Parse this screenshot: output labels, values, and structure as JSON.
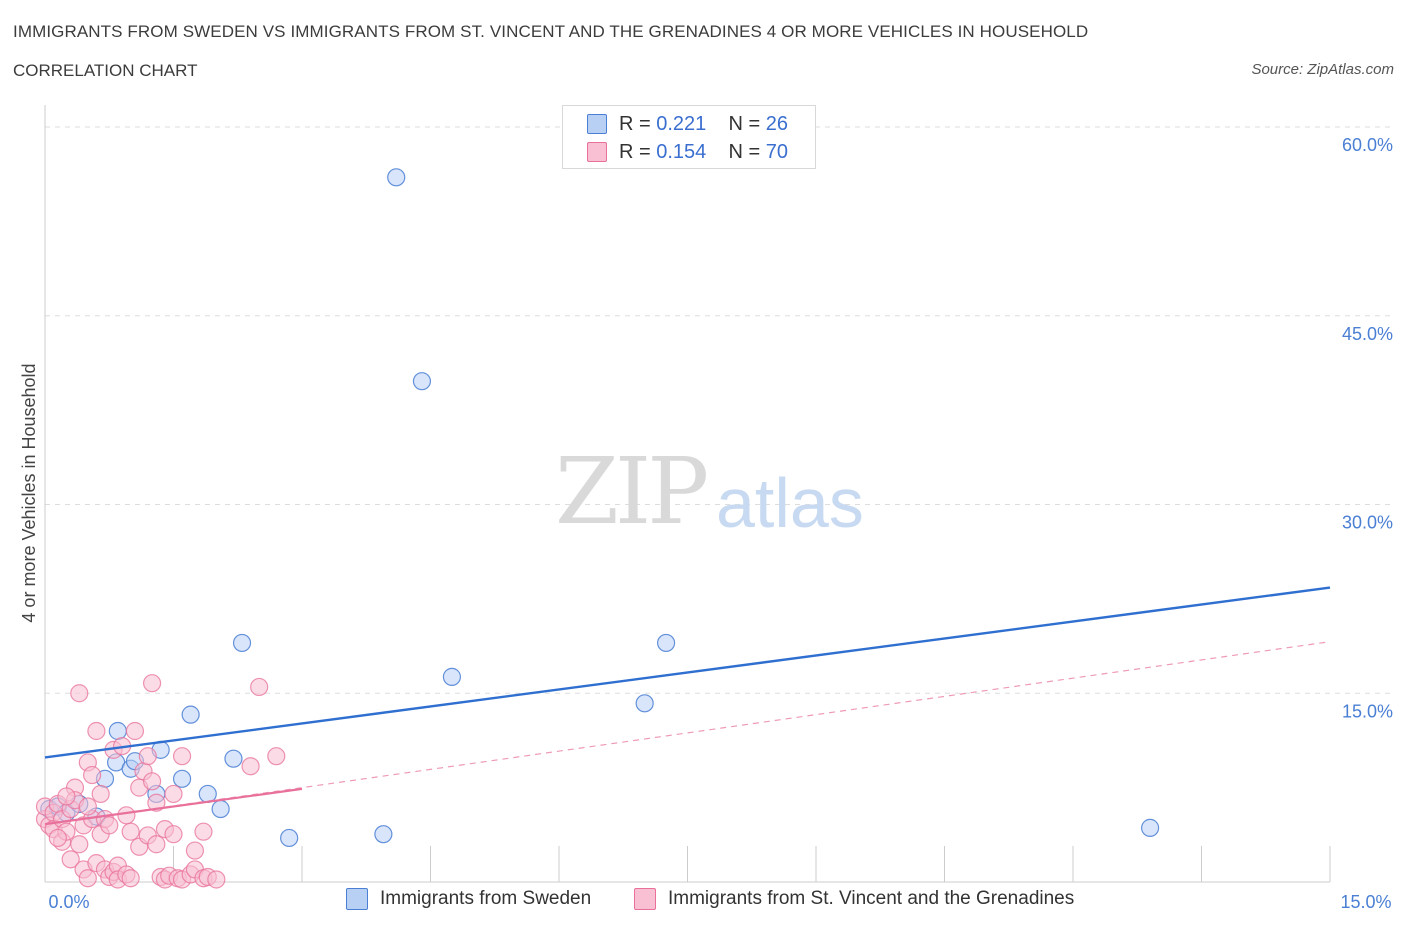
{
  "title": "IMMIGRANTS FROM SWEDEN VS IMMIGRANTS FROM ST. VINCENT AND THE GRENADINES 4 OR MORE VEHICLES IN HOUSEHOLD",
  "subtitle": "CORRELATION CHART",
  "source": "Source: ZipAtlas.com",
  "watermark": {
    "zip": "ZIP",
    "atlas": "atlas"
  },
  "legend": {
    "r_label": "R =",
    "n_label": "N =",
    "series": [
      {
        "name": "Immigrants from Sweden",
        "r": "0.221",
        "n": "26",
        "color": "#4a7fd4",
        "fill": "#b9d0f5"
      },
      {
        "name": "Immigrants from St. Vincent and the Grenadines",
        "r": "0.154",
        "n": "70",
        "color": "#e8709a",
        "fill": "#f8c0d2"
      }
    ]
  },
  "chart_data": {
    "type": "scatter",
    "title": "IMMIGRANTS FROM SWEDEN VS IMMIGRANTS FROM ST. VINCENT AND THE GRENADINES 4 OR MORE VEHICLES IN HOUSEHOLD",
    "xlabel": "",
    "ylabel": "4 or more Vehicles in Household",
    "xlim": [
      0,
      15
    ],
    "ylim": [
      0,
      60
    ],
    "x_tick_labels": [
      "0.0%",
      "15.0%"
    ],
    "y_ticks": [
      15,
      30,
      45,
      60
    ],
    "y_tick_labels": [
      "15.0%",
      "30.0%",
      "45.0%",
      "60.0%"
    ],
    "grid": true,
    "series": [
      {
        "name": "Immigrants from Sweden",
        "color": "#4a7fd4",
        "points": [
          [
            0.05,
            5.8
          ],
          [
            0.15,
            6.0
          ],
          [
            0.25,
            5.5
          ],
          [
            0.4,
            6.2
          ],
          [
            0.6,
            5.2
          ],
          [
            0.7,
            8.2
          ],
          [
            0.85,
            12.0
          ],
          [
            0.83,
            9.5
          ],
          [
            1.0,
            9.0
          ],
          [
            1.05,
            9.6
          ],
          [
            1.35,
            10.5
          ],
          [
            1.3,
            7.0
          ],
          [
            1.6,
            8.2
          ],
          [
            1.7,
            13.3
          ],
          [
            1.9,
            7.0
          ],
          [
            2.05,
            5.8
          ],
          [
            2.2,
            9.8
          ],
          [
            2.3,
            19.0
          ],
          [
            2.85,
            3.5
          ],
          [
            3.95,
            3.8
          ],
          [
            4.1,
            56.0
          ],
          [
            4.4,
            39.8
          ],
          [
            4.75,
            16.3
          ],
          [
            7.0,
            14.2
          ],
          [
            7.25,
            19.0
          ],
          [
            12.9,
            4.3
          ]
        ],
        "trend": {
          "x": [
            0,
            15
          ],
          "y": [
            9.9,
            23.4
          ]
        }
      },
      {
        "name": "Immigrants from St. Vincent and the Grenadines",
        "color": "#e8709a",
        "points": [
          [
            0.0,
            5.0
          ],
          [
            0.0,
            6.0
          ],
          [
            0.05,
            4.5
          ],
          [
            0.1,
            5.5
          ],
          [
            0.1,
            4.2
          ],
          [
            0.15,
            6.2
          ],
          [
            0.2,
            5.0
          ],
          [
            0.2,
            3.2
          ],
          [
            0.25,
            4.0
          ],
          [
            0.3,
            5.8
          ],
          [
            0.3,
            1.8
          ],
          [
            0.35,
            7.5
          ],
          [
            0.35,
            6.5
          ],
          [
            0.4,
            15.0
          ],
          [
            0.4,
            3.0
          ],
          [
            0.45,
            4.5
          ],
          [
            0.45,
            1.0
          ],
          [
            0.5,
            9.5
          ],
          [
            0.5,
            0.3
          ],
          [
            0.55,
            5.0
          ],
          [
            0.6,
            12.0
          ],
          [
            0.6,
            1.5
          ],
          [
            0.65,
            3.8
          ],
          [
            0.7,
            5.0
          ],
          [
            0.7,
            1.0
          ],
          [
            0.75,
            4.5
          ],
          [
            0.75,
            0.4
          ],
          [
            0.8,
            10.5
          ],
          [
            0.8,
            0.8
          ],
          [
            0.85,
            1.3
          ],
          [
            0.85,
            0.2
          ],
          [
            0.9,
            10.8
          ],
          [
            0.95,
            0.6
          ],
          [
            1.0,
            4.0
          ],
          [
            1.0,
            0.3
          ],
          [
            1.05,
            12.0
          ],
          [
            1.1,
            7.5
          ],
          [
            1.1,
            2.8
          ],
          [
            1.15,
            8.8
          ],
          [
            1.2,
            10.0
          ],
          [
            1.2,
            3.7
          ],
          [
            1.25,
            15.8
          ],
          [
            1.25,
            8.0
          ],
          [
            1.3,
            3.0
          ],
          [
            1.35,
            0.4
          ],
          [
            1.4,
            4.2
          ],
          [
            1.4,
            0.2
          ],
          [
            1.45,
            0.5
          ],
          [
            1.5,
            7.0
          ],
          [
            1.5,
            3.8
          ],
          [
            1.55,
            0.3
          ],
          [
            1.6,
            10.0
          ],
          [
            1.6,
            0.2
          ],
          [
            1.7,
            0.6
          ],
          [
            1.75,
            2.5
          ],
          [
            1.75,
            1.0
          ],
          [
            1.85,
            4.0
          ],
          [
            1.85,
            0.3
          ],
          [
            1.9,
            0.4
          ],
          [
            2.0,
            0.2
          ],
          [
            2.4,
            9.2
          ],
          [
            2.5,
            15.5
          ],
          [
            2.7,
            10.0
          ],
          [
            0.55,
            8.5
          ],
          [
            0.65,
            7.0
          ],
          [
            0.25,
            6.8
          ],
          [
            0.15,
            3.5
          ],
          [
            0.5,
            6.0
          ],
          [
            0.95,
            5.3
          ],
          [
            1.3,
            6.3
          ]
        ],
        "trend_solid": {
          "x": [
            0,
            3
          ],
          "y": [
            4.6,
            7.4
          ]
        },
        "trend_dashed": {
          "x": [
            0,
            15
          ],
          "y": [
            4.6,
            19.1
          ]
        }
      }
    ]
  }
}
